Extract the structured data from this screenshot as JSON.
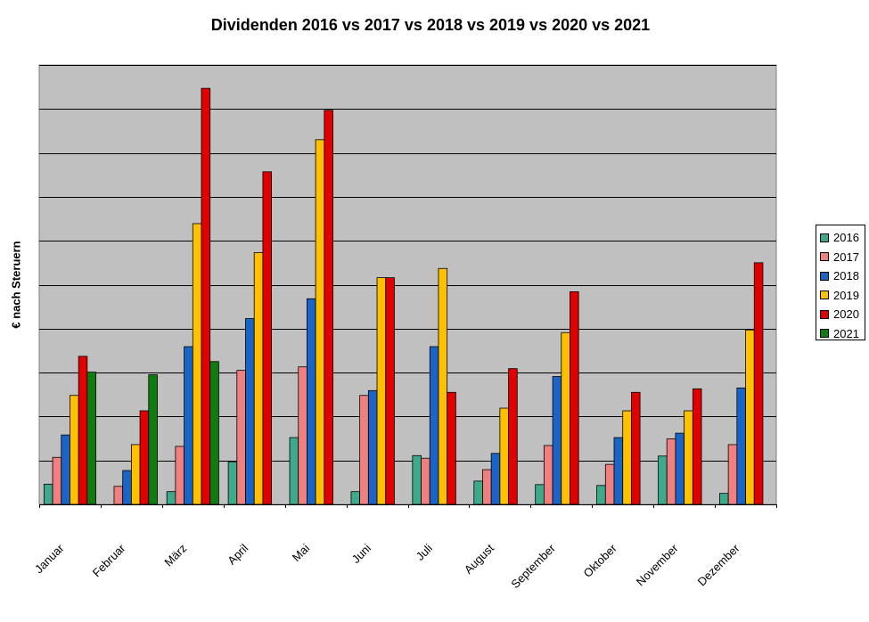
{
  "chart_data": {
    "type": "bar",
    "title": "Dividenden 2016 vs 2017 vs 2018 vs 2019 vs 2020 vs 2021",
    "ylabel": "€ nach Steruern",
    "xlabel": "",
    "ylim": [
      0,
      100
    ],
    "grid": true,
    "legend_position": "right",
    "plot_background": "#c0c0c0",
    "categories": [
      "Januar",
      "Februar",
      "März",
      "April",
      "Mai",
      "Juni",
      "Juli",
      "August",
      "September",
      "Oktober",
      "November",
      "Dezember"
    ],
    "series": [
      {
        "name": "2016",
        "color": "#3fa98b",
        "values": [
          4.6,
          0,
          2.9,
          9.7,
          15.2,
          2.9,
          11.1,
          5.3,
          4.5,
          4.3,
          11.0,
          2.5
        ]
      },
      {
        "name": "2017",
        "color": "#f08080",
        "values": [
          10.7,
          4.1,
          13.2,
          30.5,
          31.3,
          24.8,
          10.5,
          7.9,
          13.4,
          9.1,
          14.9,
          13.6
        ]
      },
      {
        "name": "2018",
        "color": "#1a64c8",
        "values": [
          15.8,
          7.7,
          35.9,
          42.3,
          46.8,
          25.9,
          35.9,
          11.6,
          29.1,
          15.2,
          16.2,
          26.5
        ]
      },
      {
        "name": "2019",
        "color": "#ffc000",
        "values": [
          24.8,
          13.6,
          63.9,
          57.3,
          83.0,
          51.6,
          53.7,
          21.9,
          39.1,
          21.3,
          21.3,
          39.7
        ]
      },
      {
        "name": "2020",
        "color": "#e00000",
        "values": [
          33.7,
          21.3,
          94.7,
          75.7,
          89.7,
          51.6,
          25.5,
          30.9,
          48.4,
          25.5,
          26.3,
          55.0
        ]
      },
      {
        "name": "2021",
        "color": "#107c10",
        "values": [
          30.1,
          29.5,
          32.5,
          null,
          null,
          null,
          null,
          null,
          null,
          null,
          null,
          null
        ]
      }
    ]
  }
}
